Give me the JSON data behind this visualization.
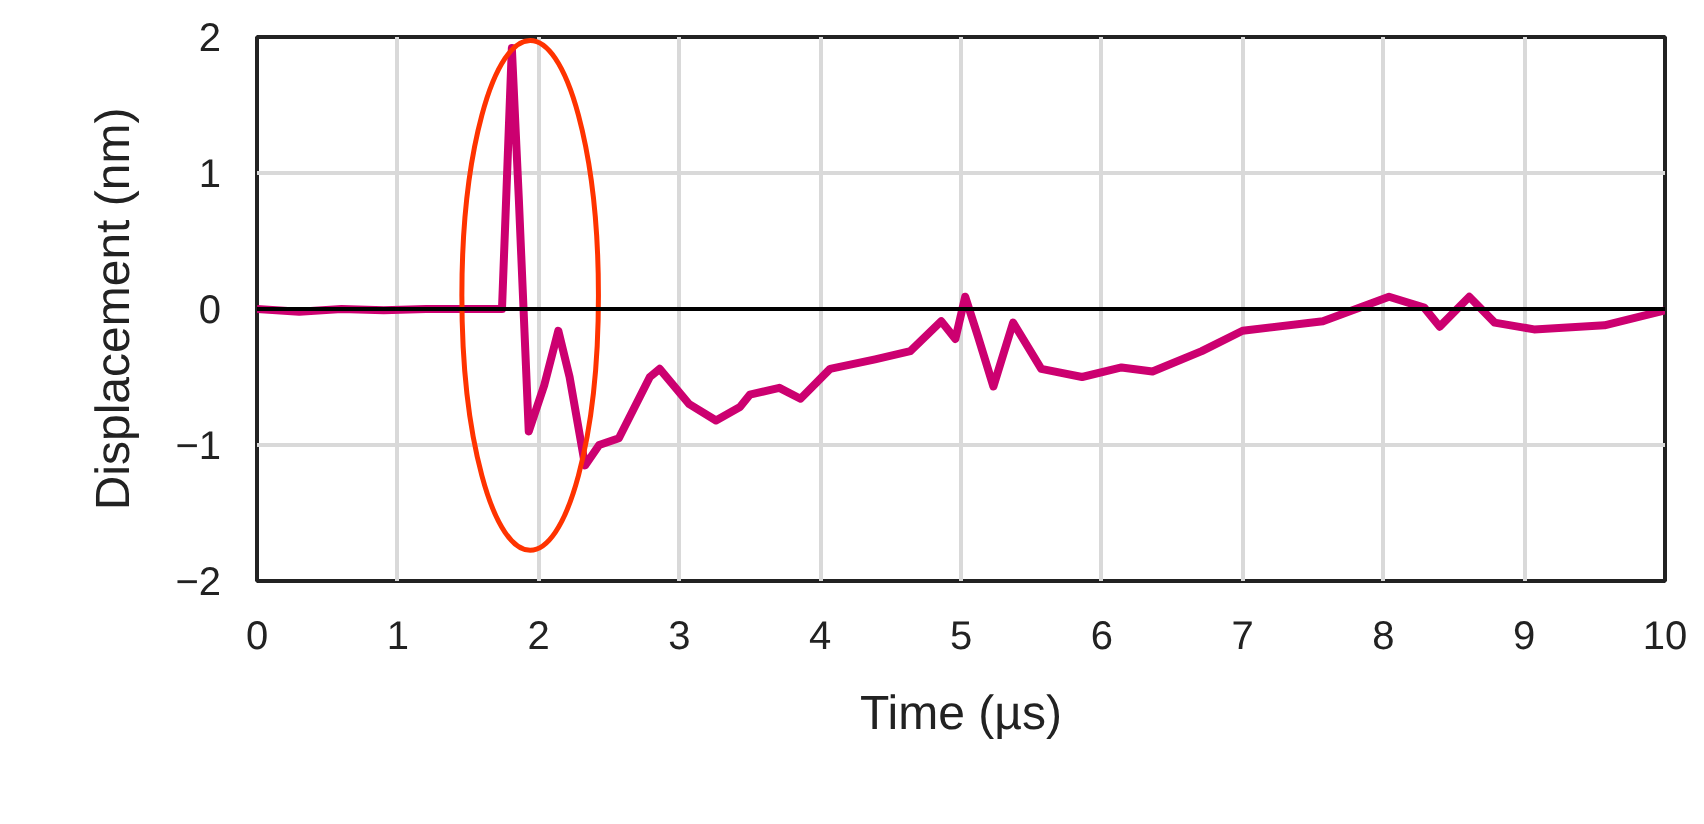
{
  "chart_data": {
    "type": "line",
    "xlabel": "Time (µs)",
    "ylabel": "Displacement (nm)",
    "xlim": [
      0,
      10
    ],
    "ylim": [
      -2,
      2
    ],
    "xticks": [
      0,
      1,
      2,
      3,
      4,
      5,
      6,
      7,
      8,
      9,
      10
    ],
    "yticks": [
      -2,
      -1,
      0,
      1,
      2
    ],
    "grid": true,
    "marker": "none",
    "line_style": "solid",
    "ref_lines": [
      {
        "axis": "y",
        "value": 0,
        "color": "#000000"
      }
    ],
    "series": [
      {
        "color": "#cc0070",
        "x": [
          0,
          0.3,
          0.6,
          0.9,
          1.2,
          1.5,
          1.74,
          1.81,
          1.86,
          1.93,
          2.04,
          2.14,
          2.22,
          2.33,
          2.43,
          2.57,
          2.79,
          2.86,
          3.07,
          3.26,
          3.43,
          3.5,
          3.71,
          3.86,
          4.07,
          4.39,
          4.64,
          4.86,
          4.96,
          5.03,
          5.12,
          5.23,
          5.37,
          5.57,
          5.86,
          6.14,
          6.36,
          6.71,
          7.0,
          7.57,
          8.04,
          8.29,
          8.4,
          8.61,
          8.79,
          9.07,
          9.57,
          10
        ],
        "values": [
          0,
          -0.02,
          0,
          -0.01,
          0,
          0,
          0,
          1.92,
          0.8,
          -0.9,
          -0.56,
          -0.16,
          -0.5,
          -1.15,
          -1.0,
          -0.95,
          -0.5,
          -0.44,
          -0.7,
          -0.82,
          -0.72,
          -0.63,
          -0.58,
          -0.66,
          -0.44,
          -0.37,
          -0.31,
          -0.09,
          -0.22,
          0.09,
          -0.2,
          -0.57,
          -0.1,
          -0.44,
          -0.5,
          -0.43,
          -0.46,
          -0.31,
          -0.16,
          -0.09,
          0.09,
          0.01,
          -0.13,
          0.09,
          -0.1,
          -0.15,
          -0.12,
          -0.01
        ]
      }
    ]
  }
}
